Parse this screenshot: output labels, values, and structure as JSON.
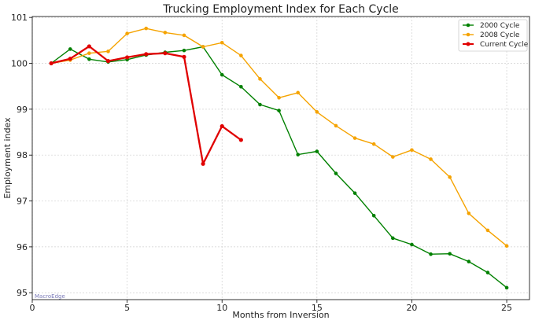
{
  "chart_data": {
    "type": "line",
    "title": "Trucking Employment Index for Each Cycle",
    "xlabel": "Months from Inversion",
    "ylabel": "Employment index",
    "xlim": [
      0,
      26.2
    ],
    "ylim": [
      94.85,
      101.02
    ],
    "xticks": [
      0,
      5,
      10,
      15,
      20,
      25
    ],
    "yticks": [
      95,
      96,
      97,
      98,
      99,
      100,
      101
    ],
    "grid": true,
    "legend_position": "top-right",
    "watermark": "MacroEdge",
    "series": [
      {
        "name": "2000 Cycle",
        "color": "#008000",
        "x": [
          1,
          2,
          3,
          4,
          5,
          6,
          7,
          8,
          9,
          10,
          11,
          12,
          13,
          14,
          15,
          16,
          17,
          18,
          19,
          20,
          21,
          22,
          23,
          24,
          25
        ],
        "y": [
          100.0,
          100.31,
          100.09,
          100.03,
          100.08,
          100.18,
          100.24,
          100.28,
          100.36,
          99.75,
          99.49,
          99.1,
          98.97,
          98.01,
          98.08,
          97.6,
          97.17,
          96.68,
          96.19,
          96.05,
          95.84,
          95.85,
          95.68,
          95.44,
          95.11
        ]
      },
      {
        "name": "2008 Cycle",
        "color": "#f5a300",
        "x": [
          1,
          2,
          3,
          4,
          5,
          6,
          7,
          8,
          9,
          10,
          11,
          12,
          13,
          14,
          15,
          16,
          17,
          18,
          19,
          20,
          21,
          22,
          23,
          24,
          25
        ],
        "y": [
          100.0,
          100.07,
          100.22,
          100.26,
          100.65,
          100.76,
          100.67,
          100.61,
          100.36,
          100.45,
          100.17,
          99.66,
          99.25,
          99.36,
          98.94,
          98.64,
          98.37,
          98.24,
          97.96,
          98.11,
          97.91,
          97.52,
          96.73,
          96.36,
          96.02
        ]
      },
      {
        "name": "Current Cycle",
        "color": "#e00000",
        "x": [
          1,
          2,
          3,
          4,
          5,
          6,
          7,
          8,
          9,
          10,
          11
        ],
        "y": [
          100.0,
          100.1,
          100.37,
          100.05,
          100.13,
          100.2,
          100.22,
          100.14,
          97.81,
          98.63,
          98.33
        ]
      }
    ]
  }
}
